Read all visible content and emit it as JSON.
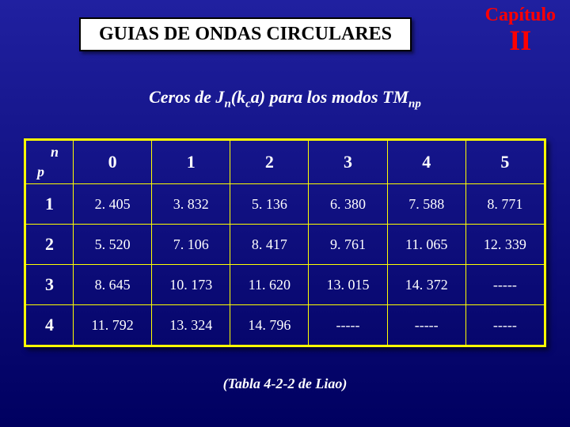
{
  "chapter": {
    "label": "Capítulo",
    "number": "II"
  },
  "title": "GUIAS DE ONDAS CIRCULARES",
  "subtitle": {
    "pre": "Ceros de J",
    "sub1": "n",
    "mid": "(k",
    "sub2": "c",
    "mid2": "a) para  los modos TM",
    "sub3": "np"
  },
  "table": {
    "corner": {
      "n": "n",
      "p": "p"
    },
    "columns": [
      "0",
      "1",
      "2",
      "3",
      "4",
      "5"
    ],
    "rows": [
      {
        "p": "1",
        "cells": [
          "2. 405",
          "3. 832",
          "5. 136",
          "6. 380",
          "7. 588",
          "8. 771"
        ]
      },
      {
        "p": "2",
        "cells": [
          "5. 520",
          "7. 106",
          "8. 417",
          "9. 761",
          "11. 065",
          "12. 339"
        ]
      },
      {
        "p": "3",
        "cells": [
          "8. 645",
          "10. 173",
          "11. 620",
          "13. 015",
          "14. 372",
          "-----"
        ]
      },
      {
        "p": "4",
        "cells": [
          "11. 792",
          "13. 324",
          "14. 796",
          "-----",
          "-----",
          "-----"
        ]
      }
    ],
    "background_color": "transparent",
    "border_color": "#ffff00",
    "text_color": "#ffffff",
    "header_fontsize": 22,
    "cell_fontsize": 18
  },
  "caption": "(Tabla 4-2-2 de Liao)"
}
